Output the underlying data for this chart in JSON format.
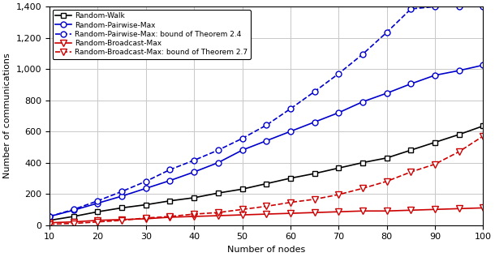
{
  "x": [
    10,
    15,
    20,
    25,
    30,
    35,
    40,
    45,
    50,
    55,
    60,
    65,
    70,
    75,
    80,
    85,
    90,
    95,
    100
  ],
  "random_walk": [
    30,
    55,
    85,
    110,
    130,
    155,
    175,
    205,
    230,
    265,
    300,
    330,
    365,
    400,
    430,
    480,
    530,
    580,
    635
  ],
  "random_pairwise_max": [
    55,
    95,
    140,
    185,
    235,
    285,
    340,
    400,
    480,
    540,
    600,
    660,
    720,
    790,
    845,
    905,
    960,
    990,
    1025
  ],
  "random_pairwise_max_bound": [
    55,
    100,
    155,
    215,
    280,
    355,
    415,
    480,
    555,
    640,
    745,
    855,
    970,
    1095,
    1235,
    1385,
    1400,
    1400,
    1400
  ],
  "random_broadcast_max": [
    15,
    20,
    30,
    35,
    40,
    50,
    55,
    60,
    65,
    70,
    75,
    80,
    85,
    90,
    90,
    95,
    100,
    105,
    110
  ],
  "random_broadcast_max_bound": [
    5,
    10,
    20,
    30,
    45,
    55,
    70,
    80,
    100,
    120,
    145,
    165,
    195,
    235,
    280,
    340,
    390,
    470,
    570
  ],
  "xlabel": "Number of nodes",
  "ylabel": "Number of communications",
  "xlim": [
    10,
    100
  ],
  "ylim": [
    0,
    1400
  ],
  "yticks": [
    0,
    200,
    400,
    600,
    800,
    1000,
    1200,
    1400
  ],
  "xticks": [
    10,
    20,
    30,
    40,
    50,
    60,
    70,
    80,
    90,
    100
  ],
  "legend_labels": [
    "Random-Walk",
    "Random-Pairwise-Max",
    "Random-Pairwise-Max: bound of Theorem 2.4",
    "Random-Broadcast-Max",
    "Random-Broadcast-Max: bound of Theorem 2.7"
  ],
  "color_black": "#000000",
  "color_blue": "#0000cc",
  "color_red": "#cc0000",
  "bg_color": "#ffffff",
  "grid_color": "#c8c8c8"
}
